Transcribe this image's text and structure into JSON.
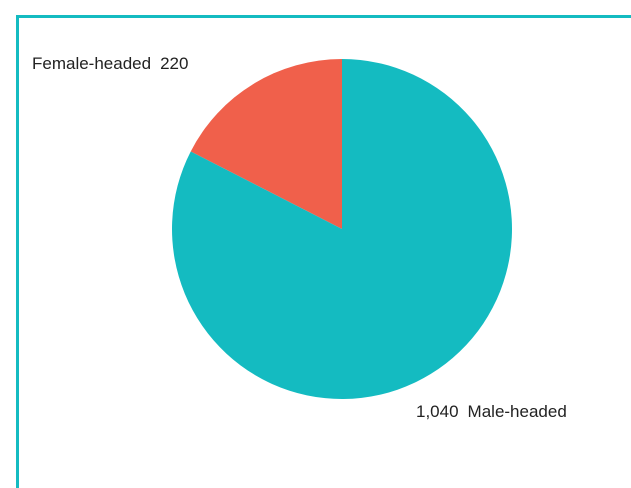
{
  "chart_data": {
    "type": "pie",
    "slices": [
      {
        "label": "Female-headed",
        "value": 220,
        "value_text": "220",
        "color": "#f0604b"
      },
      {
        "label": "Male-headed",
        "value": 1040,
        "value_text": "1,040",
        "color": "#14bbc1"
      }
    ],
    "start_angle_deg": 0,
    "direction": "counterclockwise",
    "frame_color": "#14bbc1",
    "title": ""
  }
}
